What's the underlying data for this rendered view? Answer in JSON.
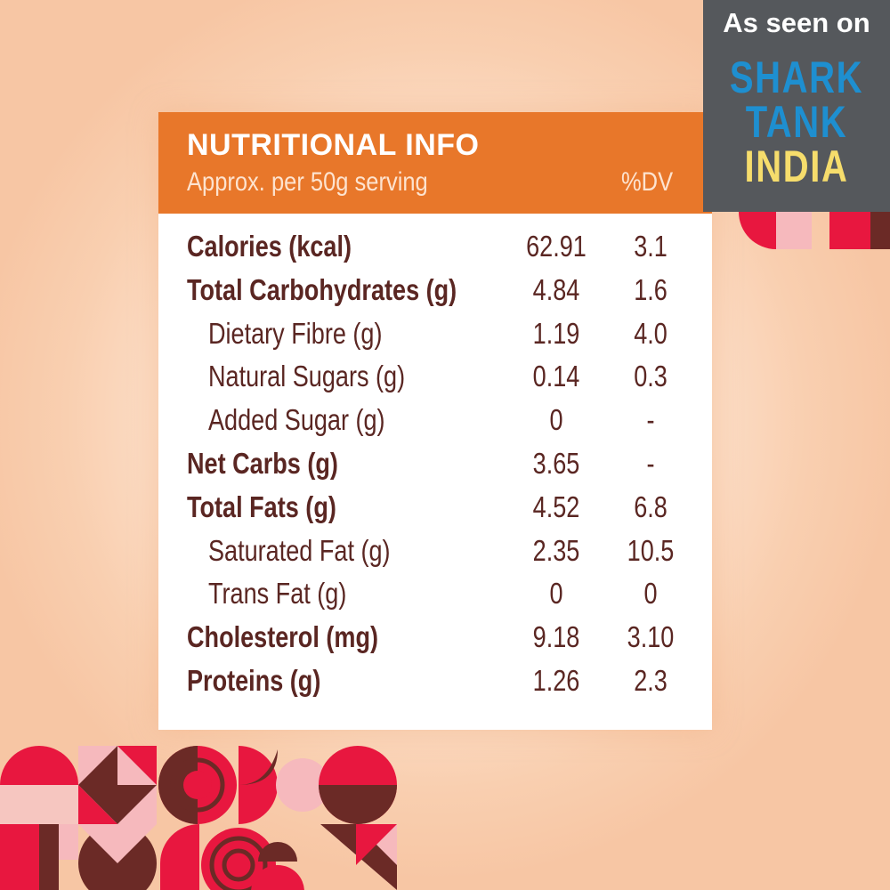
{
  "header": {
    "title": "NUTRITIONAL INFO",
    "subtitle": "Approx. per 50g serving",
    "dv_header": "%DV"
  },
  "rows": [
    {
      "label": "Calories (kcal)",
      "value": "62.91",
      "dv": "3.1",
      "bold": true
    },
    {
      "label": "Total Carbohydrates (g)",
      "value": "4.84",
      "dv": "1.6",
      "bold": true
    },
    {
      "label": "Dietary Fibre (g)",
      "value": "1.19",
      "dv": "4.0",
      "bold": false
    },
    {
      "label": "Natural Sugars (g)",
      "value": "0.14",
      "dv": "0.3",
      "bold": false
    },
    {
      "label": "Added Sugar (g)",
      "value": "0",
      "dv": "-",
      "bold": false
    },
    {
      "label": "Net Carbs (g)",
      "value": "3.65",
      "dv": "-",
      "bold": true
    },
    {
      "label": "Total Fats (g)",
      "value": "4.52",
      "dv": "6.8",
      "bold": true
    },
    {
      "label": "Saturated Fat (g)",
      "value": "2.35",
      "dv": "10.5",
      "bold": false
    },
    {
      "label": "Trans Fat (g)",
      "value": "0",
      "dv": "0",
      "bold": false
    },
    {
      "label": "Cholesterol (mg)",
      "value": "9.18",
      "dv": "3.10",
      "bold": true
    },
    {
      "label": "Proteins (g)",
      "value": "1.26",
      "dv": "2.3",
      "bold": true
    }
  ],
  "badge": {
    "text": "As seen on",
    "logo_line1": "SHARK",
    "logo_line2": "TANK",
    "logo_line3": "INDIA"
  },
  "colors": {
    "orange": "#e8772a",
    "brown": "#5a2622",
    "red": "#e8173f",
    "pink": "#f6b9bd"
  }
}
